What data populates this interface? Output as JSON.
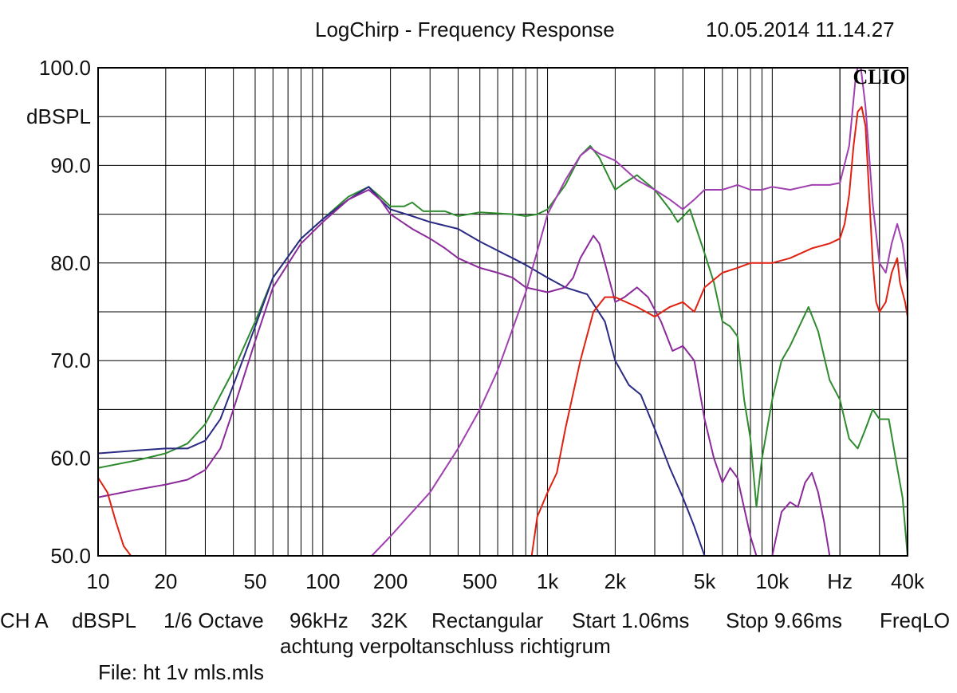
{
  "header": {
    "title": "LogChirp - Frequency Response",
    "timestamp": "10.05.2014 11.14.27"
  },
  "brand": "CLIO",
  "footer": {
    "channel": "CH A",
    "unit": "dBSPL",
    "smoothing": "1/6 Octave",
    "sample_rate": "96kHz",
    "fft_size": "32K",
    "window": "Rectangular",
    "start": "Start 1.06ms",
    "stop": "Stop 9.66ms",
    "mode": "FreqLO",
    "comment": "achtung verpoltanschluss richtigrum",
    "file": "File: ht 1v mls.mls"
  },
  "colors": {
    "green": "#2e8b2e",
    "navy": "#2b2b85",
    "purple": "#8b2a9a",
    "magenta": "#a040b0",
    "red": "#e02010",
    "grid": "#000000"
  },
  "chart_data": {
    "type": "line",
    "title": "LogChirp - Frequency Response",
    "xlabel": "",
    "ylabel": "dBSPL",
    "x_scale": "log",
    "xlim": [
      10,
      40000
    ],
    "ylim": [
      50,
      100
    ],
    "grid": true,
    "y_ticks": [
      {
        "value": 100,
        "label": "100.0"
      },
      {
        "value": 95,
        "label": "dBSPL"
      },
      {
        "value": 90,
        "label": "90.0"
      },
      {
        "value": 80,
        "label": "80.0"
      },
      {
        "value": 70,
        "label": "70.0"
      },
      {
        "value": 60,
        "label": "60.0"
      },
      {
        "value": 50,
        "label": "50.0"
      }
    ],
    "x_ticks": [
      {
        "value": 10,
        "label": "10"
      },
      {
        "value": 20,
        "label": "20"
      },
      {
        "value": 50,
        "label": "50"
      },
      {
        "value": 100,
        "label": "100"
      },
      {
        "value": 200,
        "label": "200"
      },
      {
        "value": 500,
        "label": "500"
      },
      {
        "value": 1000,
        "label": "1k"
      },
      {
        "value": 2000,
        "label": "2k"
      },
      {
        "value": 5000,
        "label": "5k"
      },
      {
        "value": 10000,
        "label": "10k"
      },
      {
        "value": 20000,
        "label": "Hz"
      },
      {
        "value": 40000,
        "label": "40k"
      }
    ],
    "series": [
      {
        "color": "green",
        "points": [
          [
            10,
            59
          ],
          [
            15,
            59.8
          ],
          [
            20,
            60.5
          ],
          [
            25,
            61.5
          ],
          [
            30,
            63.5
          ],
          [
            40,
            69
          ],
          [
            50,
            74
          ],
          [
            60,
            78.5
          ],
          [
            80,
            82.5
          ],
          [
            100,
            84.5
          ],
          [
            130,
            86.8
          ],
          [
            160,
            87.8
          ],
          [
            180,
            86.8
          ],
          [
            200,
            85.8
          ],
          [
            230,
            85.8
          ],
          [
            250,
            86.2
          ],
          [
            280,
            85.3
          ],
          [
            350,
            85.3
          ],
          [
            400,
            84.8
          ],
          [
            500,
            85.2
          ],
          [
            700,
            85
          ],
          [
            800,
            84.8
          ],
          [
            900,
            85
          ],
          [
            1000,
            85.5
          ],
          [
            1200,
            88
          ],
          [
            1400,
            91
          ],
          [
            1550,
            92
          ],
          [
            1700,
            90.8
          ],
          [
            1900,
            88.5
          ],
          [
            2000,
            87.5
          ],
          [
            2200,
            88.2
          ],
          [
            2500,
            89
          ],
          [
            3000,
            87.5
          ],
          [
            3500,
            85.5
          ],
          [
            3800,
            84.2
          ],
          [
            4300,
            85.5
          ],
          [
            5000,
            81
          ],
          [
            5500,
            78
          ],
          [
            6000,
            74
          ],
          [
            6500,
            73.5
          ],
          [
            7000,
            72.5
          ],
          [
            7500,
            66
          ],
          [
            8000,
            62
          ],
          [
            8500,
            55
          ],
          [
            9000,
            60
          ],
          [
            10000,
            66
          ],
          [
            11000,
            70
          ],
          [
            12000,
            71.5
          ],
          [
            13500,
            74
          ],
          [
            14500,
            75.5
          ],
          [
            16000,
            73
          ],
          [
            18000,
            68
          ],
          [
            20000,
            66
          ],
          [
            22000,
            62
          ],
          [
            24000,
            61
          ],
          [
            26000,
            63
          ],
          [
            28000,
            65
          ],
          [
            30000,
            64
          ],
          [
            33000,
            64
          ],
          [
            36000,
            59
          ],
          [
            38000,
            56
          ],
          [
            40000,
            50
          ]
        ]
      },
      {
        "color": "navy",
        "points": [
          [
            10,
            60.5
          ],
          [
            15,
            60.8
          ],
          [
            20,
            61
          ],
          [
            25,
            61
          ],
          [
            30,
            61.8
          ],
          [
            35,
            64
          ],
          [
            40,
            67.5
          ],
          [
            50,
            73.5
          ],
          [
            60,
            78.5
          ],
          [
            80,
            82.5
          ],
          [
            100,
            84.5
          ],
          [
            130,
            86.5
          ],
          [
            160,
            87.8
          ],
          [
            180,
            86.5
          ],
          [
            200,
            85.5
          ],
          [
            250,
            84.8
          ],
          [
            300,
            84.2
          ],
          [
            400,
            83.5
          ],
          [
            500,
            82.2
          ],
          [
            700,
            80.5
          ],
          [
            800,
            79.8
          ],
          [
            1000,
            78.5
          ],
          [
            1200,
            77.5
          ],
          [
            1500,
            76.8
          ],
          [
            1800,
            74
          ],
          [
            2000,
            70
          ],
          [
            2300,
            67.5
          ],
          [
            2600,
            66.5
          ],
          [
            3000,
            63
          ],
          [
            3500,
            59
          ],
          [
            4000,
            56
          ],
          [
            4500,
            53
          ],
          [
            5000,
            50
          ]
        ]
      },
      {
        "color": "purple",
        "points": [
          [
            10,
            56
          ],
          [
            15,
            56.8
          ],
          [
            20,
            57.3
          ],
          [
            25,
            57.8
          ],
          [
            30,
            58.8
          ],
          [
            35,
            61
          ],
          [
            40,
            65
          ],
          [
            50,
            72
          ],
          [
            60,
            77.5
          ],
          [
            80,
            82
          ],
          [
            100,
            84.2
          ],
          [
            130,
            86.5
          ],
          [
            160,
            87.5
          ],
          [
            180,
            86.5
          ],
          [
            200,
            85
          ],
          [
            250,
            83.5
          ],
          [
            300,
            82.5
          ],
          [
            350,
            81.5
          ],
          [
            400,
            80.5
          ],
          [
            500,
            79.5
          ],
          [
            600,
            79
          ],
          [
            700,
            78.5
          ],
          [
            800,
            77.5
          ],
          [
            1000,
            77
          ],
          [
            1200,
            77.5
          ],
          [
            1300,
            78.5
          ],
          [
            1400,
            80.5
          ],
          [
            1600,
            82.8
          ],
          [
            1700,
            82
          ],
          [
            1800,
            80
          ],
          [
            2000,
            76
          ],
          [
            2200,
            76.5
          ],
          [
            2500,
            77.5
          ],
          [
            2800,
            76.5
          ],
          [
            3200,
            74
          ],
          [
            3600,
            71
          ],
          [
            4000,
            71.5
          ],
          [
            4500,
            70
          ],
          [
            5000,
            64
          ],
          [
            5500,
            60
          ],
          [
            6000,
            57.5
          ],
          [
            6500,
            59
          ],
          [
            7000,
            58
          ],
          [
            8000,
            52
          ],
          [
            8500,
            50
          ],
          [
            10000,
            50
          ],
          [
            11000,
            54.5
          ],
          [
            12000,
            55.5
          ],
          [
            13000,
            55
          ],
          [
            14000,
            57.5
          ],
          [
            15000,
            58.5
          ],
          [
            16000,
            56.5
          ],
          [
            17000,
            53.5
          ],
          [
            18000,
            50
          ]
        ]
      },
      {
        "color": "magenta",
        "points": [
          [
            165,
            50
          ],
          [
            200,
            52
          ],
          [
            300,
            56.5
          ],
          [
            400,
            61
          ],
          [
            500,
            65
          ],
          [
            600,
            69
          ],
          [
            800,
            77
          ],
          [
            1000,
            85
          ],
          [
            1200,
            88.5
          ],
          [
            1400,
            91
          ],
          [
            1550,
            91.8
          ],
          [
            1700,
            91.2
          ],
          [
            2000,
            90.5
          ],
          [
            2500,
            88.5
          ],
          [
            3000,
            87.5
          ],
          [
            3500,
            86.5
          ],
          [
            4000,
            85.5
          ],
          [
            4500,
            86.5
          ],
          [
            5000,
            87.5
          ],
          [
            6000,
            87.5
          ],
          [
            7000,
            88
          ],
          [
            8000,
            87.5
          ],
          [
            9000,
            87.5
          ],
          [
            10000,
            87.8
          ],
          [
            12000,
            87.5
          ],
          [
            15000,
            88
          ],
          [
            18000,
            88
          ],
          [
            20000,
            88.2
          ],
          [
            22000,
            92
          ],
          [
            23500,
            99
          ],
          [
            24500,
            101
          ],
          [
            26000,
            96
          ],
          [
            28000,
            86
          ],
          [
            30000,
            80
          ],
          [
            32000,
            79
          ],
          [
            34000,
            82
          ],
          [
            36000,
            84
          ],
          [
            38000,
            82
          ],
          [
            40000,
            78
          ]
        ]
      },
      {
        "color": "red",
        "points": [
          [
            10,
            58
          ],
          [
            11,
            56.5
          ],
          [
            12,
            53.5
          ],
          [
            13,
            51
          ],
          [
            14,
            50
          ],
          [
            850,
            50
          ],
          [
            900,
            54
          ],
          [
            1000,
            56.5
          ],
          [
            1100,
            58.5
          ],
          [
            1200,
            63
          ],
          [
            1400,
            70
          ],
          [
            1600,
            75
          ],
          [
            1800,
            76.5
          ],
          [
            2000,
            76.5
          ],
          [
            2500,
            75.5
          ],
          [
            3000,
            74.5
          ],
          [
            3500,
            75.5
          ],
          [
            4000,
            76
          ],
          [
            4500,
            75
          ],
          [
            5000,
            77.5
          ],
          [
            6000,
            79
          ],
          [
            7000,
            79.5
          ],
          [
            8000,
            80
          ],
          [
            9000,
            80
          ],
          [
            10000,
            80
          ],
          [
            12000,
            80.5
          ],
          [
            15000,
            81.5
          ],
          [
            18000,
            82
          ],
          [
            20000,
            82.5
          ],
          [
            21000,
            84
          ],
          [
            22000,
            87
          ],
          [
            23000,
            92
          ],
          [
            24000,
            95.5
          ],
          [
            25000,
            96
          ],
          [
            26000,
            94
          ],
          [
            27000,
            87
          ],
          [
            28000,
            80
          ],
          [
            29000,
            76
          ],
          [
            30000,
            75
          ],
          [
            32000,
            76
          ],
          [
            34000,
            79
          ],
          [
            36000,
            80.5
          ],
          [
            37000,
            78
          ],
          [
            38000,
            77
          ],
          [
            39000,
            76
          ],
          [
            40000,
            74.5
          ]
        ]
      }
    ]
  }
}
